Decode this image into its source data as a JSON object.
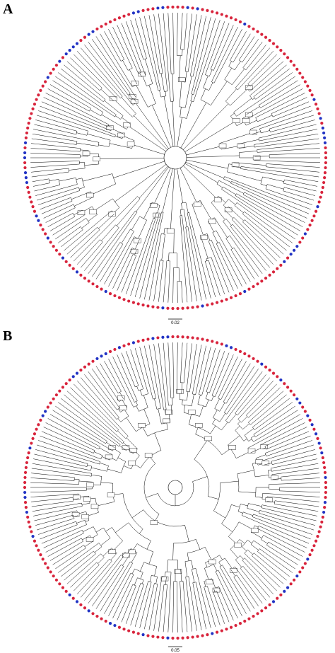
{
  "figure": {
    "panels": [
      {
        "label": "A",
        "scale_label": "0.02",
        "tree_style": "star"
      },
      {
        "label": "B",
        "scale_label": "0.05",
        "tree_style": "deep-nested"
      }
    ],
    "legend_colors": {
      "group_red": "#d8243c",
      "group_blue": "#2233c4",
      "branch": "#000000"
    }
  }
}
